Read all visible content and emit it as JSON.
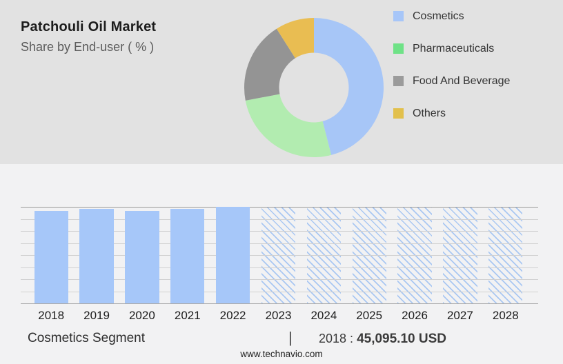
{
  "header": {
    "title": "Patchouli Oil Market",
    "subtitle": "Share by End-user ( % )"
  },
  "pie_legend": {
    "items": [
      {
        "label": "Cosmetics",
        "swatch_color": "#a7c6f8"
      },
      {
        "label": "Pharmaceuticals",
        "swatch_color": "#6fe287"
      },
      {
        "label": "Food And Beverage",
        "swatch_color": "#9b9b9b"
      },
      {
        "label": "Others",
        "swatch_color": "#e2c04c"
      }
    ]
  },
  "footer": {
    "segment_label": "Cosmetics Segment",
    "separator": "|",
    "value_prefix": "2018 :",
    "value": "45,095.10 USD",
    "website": "www.technavio.com"
  },
  "colors": {
    "top_panel_bg": "#e2e2e2",
    "bottom_panel_bg": "#f2f2f3",
    "bar_solid": "#a6c7f9",
    "bar_hatch": "#a9c7f2",
    "gridline": "#d0d0d0"
  },
  "chart_data": [
    {
      "type": "pie",
      "subtype": "donut",
      "title": "Patchouli Oil Market",
      "subtitle": "Share by End-user ( % )",
      "unit": "%",
      "start_angle_deg": 0,
      "direction": "clockwise",
      "inner_radius_ratio": 0.5,
      "legend_position": "right",
      "slices": [
        {
          "label": "Cosmetics",
          "value_pct": 46,
          "color": "#a7c6f7"
        },
        {
          "label": "Pharmaceuticals",
          "value_pct": 26,
          "color": "#b2ecb0"
        },
        {
          "label": "Food And Beverage",
          "value_pct": 19,
          "color": "#949494"
        },
        {
          "label": "Others",
          "value_pct": 9,
          "color": "#e9bd52"
        }
      ]
    },
    {
      "type": "bar",
      "categories": [
        "2018",
        "2019",
        "2020",
        "2021",
        "2022",
        "2023",
        "2024",
        "2025",
        "2026",
        "2027",
        "2028"
      ],
      "series": [
        {
          "name": "Cosmetics Segment",
          "values_relative_height": [
            0.957,
            0.979,
            0.957,
            0.979,
            1.0,
            1.0,
            1.0,
            1.0,
            1.0,
            1.0,
            1.0
          ]
        }
      ],
      "labeled_point": {
        "category": "2018",
        "value": "45,095.10 USD"
      },
      "forecast_categories": [
        "2023",
        "2024",
        "2025",
        "2026",
        "2027",
        "2028"
      ],
      "historical_style": "solid",
      "forecast_style": "diagonal-hatch",
      "gridlines": {
        "visible": true,
        "horizontal_count": 9
      },
      "value_axis_labels_visible": false
    }
  ]
}
